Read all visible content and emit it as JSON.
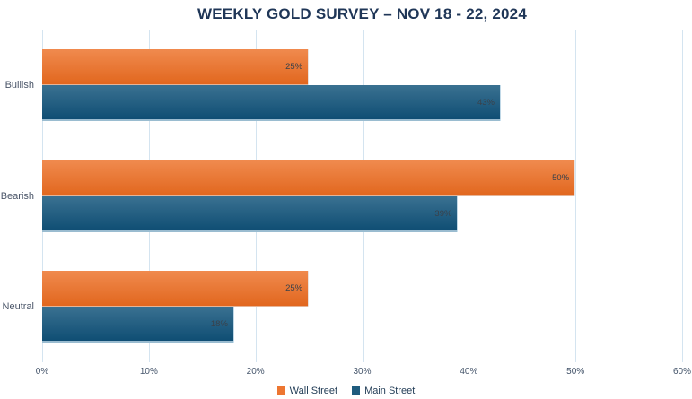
{
  "chart_data": {
    "type": "bar",
    "orientation": "horizontal",
    "title": "WEEKLY GOLD SURVEY – NOV 18 - 22, 2024",
    "categories": [
      "Bullish",
      "Bearish",
      "Neutral"
    ],
    "series": [
      {
        "name": "Wall Street",
        "color": "#ED7631",
        "gradient_top": "#F08A4E",
        "gradient_bottom": "#E1661D",
        "values": [
          25,
          50,
          25
        ]
      },
      {
        "name": "Main Street",
        "color": "#1F5C7E",
        "gradient_top": "#3A7191",
        "gradient_bottom": "#0D4C72",
        "values": [
          43,
          39,
          18
        ]
      }
    ],
    "data_labels": [
      [
        "25%",
        "50%",
        "25%"
      ],
      [
        "43%",
        "39%",
        "18%"
      ]
    ],
    "xlim": [
      0,
      60
    ],
    "x_tick_labels": [
      "0%",
      "10%",
      "20%",
      "30%",
      "40%",
      "50%",
      "60%"
    ],
    "value_suffix": "%",
    "grid": "vertical-only",
    "gridline_color": "#D4E4F0",
    "legend_position": "bottom",
    "legend": [
      {
        "label": "Wall Street",
        "color": "#ED7631"
      },
      {
        "label": "Main Street",
        "color": "#1F5C7E"
      }
    ],
    "colors": {
      "title_text": "#1F3657",
      "axis_text": "#44546A",
      "category_text": "#4A5568",
      "data_label_text": "#3A414A",
      "background": "#FFFFFF"
    }
  }
}
